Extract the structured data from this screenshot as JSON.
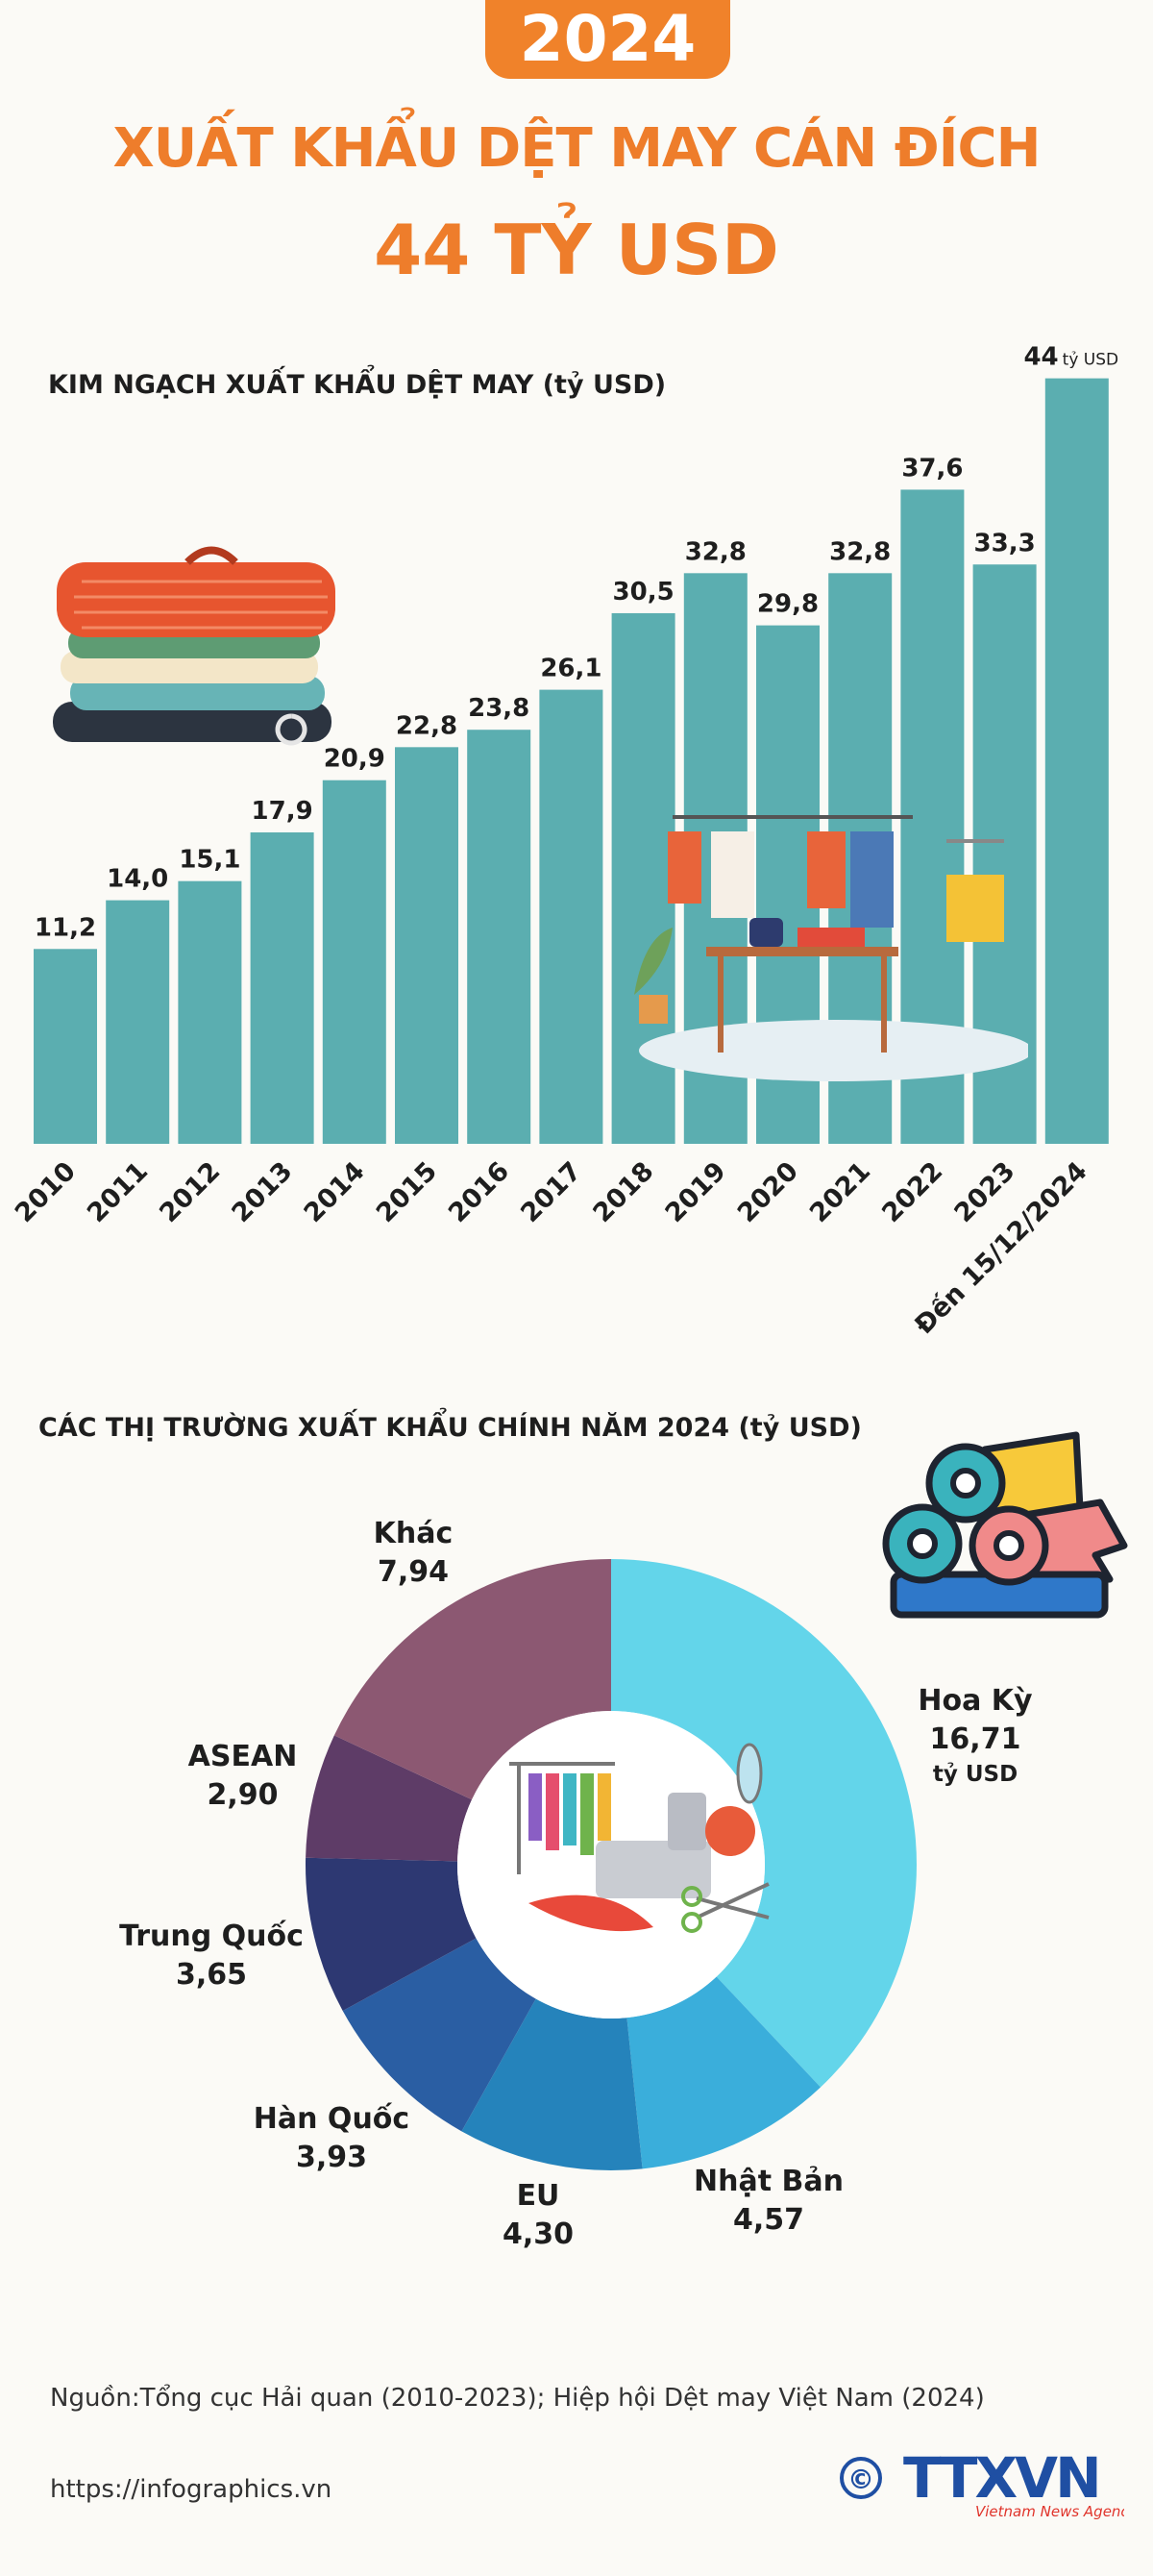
{
  "header": {
    "year": "2024",
    "headline": "XUẤT KHẨU DỆT MAY CÁN ĐÍCH",
    "headline_value": "44 TỶ USD"
  },
  "chart_data": [
    {
      "type": "bar",
      "title": "KIM NGẠCH XUẤT KHẨU DỆT MAY (tỷ USD)",
      "categories": [
        "2010",
        "2011",
        "2012",
        "2013",
        "2014",
        "2015",
        "2016",
        "2017",
        "2018",
        "2019",
        "2020",
        "2021",
        "2022",
        "2023",
        "Đến 15/12/2024"
      ],
      "values": [
        11.2,
        14.0,
        15.1,
        17.9,
        20.9,
        22.8,
        23.8,
        26.1,
        30.5,
        32.8,
        29.8,
        32.8,
        37.6,
        33.3,
        44
      ],
      "value_labels": [
        "11,2",
        "14,0",
        "15,1",
        "17,9",
        "20,9",
        "22,8",
        "23,8",
        "26,1",
        "30,5",
        "32,8",
        "29,8",
        "32,8",
        "37,6",
        "33,3",
        "44"
      ],
      "last_value_unit": "tỷ USD",
      "bar_color": "#5baeb0"
    },
    {
      "type": "pie",
      "title": "CÁC THỊ TRƯỜNG XUẤT KHẨU CHÍNH NĂM 2024 (tỷ USD)",
      "slices": [
        {
          "name": "Hoa Kỳ",
          "value": 16.71,
          "label": "16,71",
          "unit": "tỷ USD",
          "color": "#63d5ea"
        },
        {
          "name": "Nhật Bản",
          "value": 4.57,
          "label": "4,57",
          "color": "#3aaedb"
        },
        {
          "name": "EU",
          "value": 4.3,
          "label": "4,30",
          "color": "#2583bb"
        },
        {
          "name": "Hàn Quốc",
          "value": 3.93,
          "label": "3,93",
          "color": "#2a5ea3"
        },
        {
          "name": "Trung Quốc",
          "value": 3.65,
          "label": "3,65",
          "color": "#2d3872"
        },
        {
          "name": "ASEAN",
          "value": 2.9,
          "label": "2,90",
          "color": "#5e3c67"
        },
        {
          "name": "Khác",
          "value": 7.94,
          "label": "7,94",
          "color": "#8c5872"
        }
      ]
    }
  ],
  "footer": {
    "source": "Nguồn:Tổng cục Hải quan (2010-2023); Hiệp hội Dệt may Việt Nam (2024)",
    "website": "https://infographics.vn",
    "logo_symbol": "©",
    "logo_text": "TTXVN",
    "logo_subtitle": "Vietnam News Agency"
  }
}
